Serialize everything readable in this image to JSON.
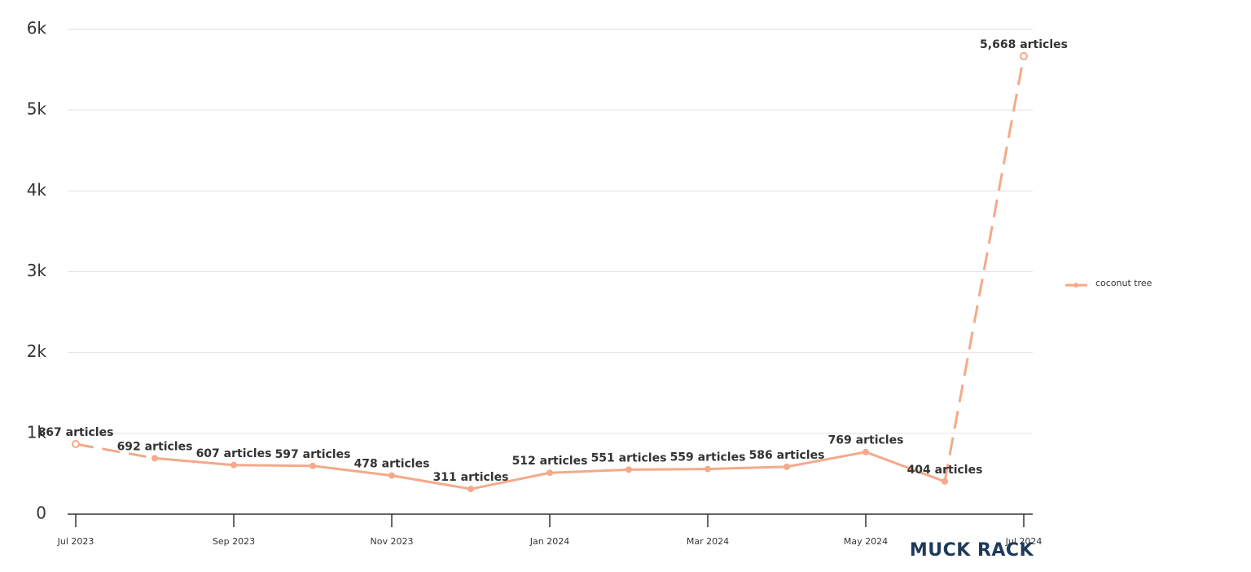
{
  "chart_data": {
    "type": "line",
    "categories": [
      "Jul 2023",
      null,
      "Sep 2023",
      null,
      "Nov 2023",
      null,
      "Jan 2024",
      null,
      "Mar 2024",
      null,
      "May 2024",
      null,
      "Jul 2024"
    ],
    "series": [
      {
        "name": "coconut tree",
        "color": "#f4a98a",
        "values": [
          867,
          692,
          607,
          597,
          478,
          311,
          512,
          551,
          559,
          586,
          769,
          404,
          5668
        ],
        "value_labels": [
          "867 articles",
          "692 articles",
          "607 articles",
          "597 articles",
          "478 articles",
          "311 articles",
          "512 articles",
          "551 articles",
          "559 articles",
          "586 articles",
          "769 articles",
          "404 articles",
          "5,668 articles"
        ]
      }
    ],
    "ylim": [
      0,
      6000
    ],
    "yticks": [
      0,
      {
        "value": 1000,
        "label": "1k"
      },
      {
        "value": 2000,
        "label": "2k"
      },
      {
        "value": 3000,
        "label": "3k"
      },
      {
        "value": 4000,
        "label": "4k"
      },
      {
        "value": 5000,
        "label": "5k"
      },
      {
        "value": 6000,
        "label": "6k"
      }
    ],
    "grid": true,
    "legend": "right",
    "watermark": "MUCK RACK"
  }
}
